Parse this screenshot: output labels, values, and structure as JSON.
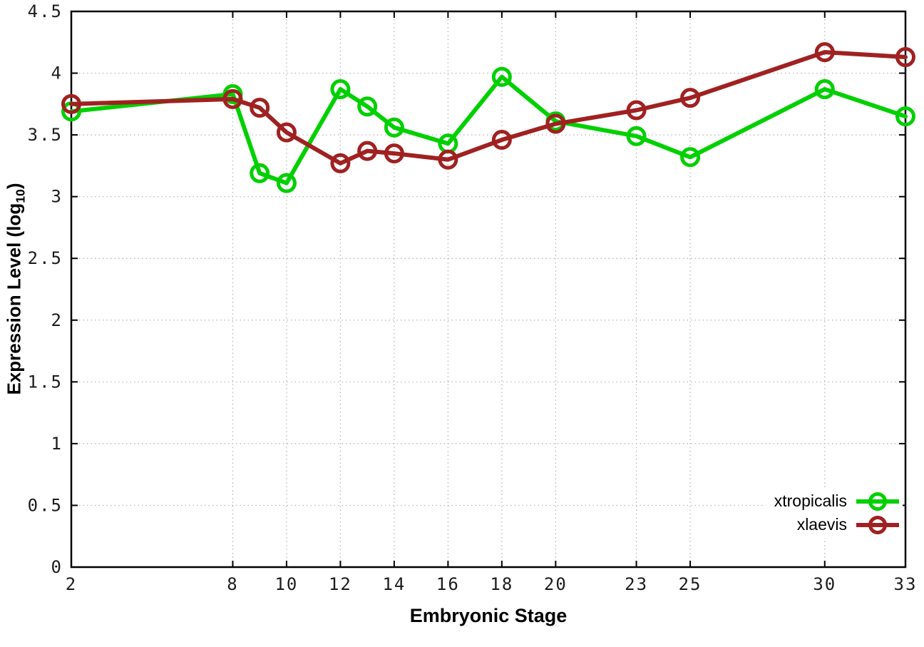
{
  "chart_data": {
    "type": "line",
    "title": "",
    "xlabel": "Embryonic Stage",
    "ylabel": "Expression Level (log10)",
    "ylabel_parts": {
      "pre": "Expression Level (log",
      "sub": "10",
      "post": ")"
    },
    "x": [
      2,
      8,
      9,
      10,
      12,
      13,
      14,
      16,
      18,
      20,
      23,
      25,
      30,
      33
    ],
    "series": [
      {
        "name": "xtropicalis",
        "color": "#00d000",
        "values": [
          3.69,
          3.83,
          3.19,
          3.11,
          3.87,
          3.73,
          3.56,
          3.43,
          3.97,
          3.61,
          3.49,
          3.32,
          3.87,
          3.65
        ]
      },
      {
        "name": "xlaevis",
        "color": "#a02121",
        "values": [
          3.75,
          3.79,
          3.72,
          3.52,
          3.27,
          3.37,
          3.35,
          3.3,
          3.46,
          3.59,
          3.7,
          3.8,
          4.17,
          4.13
        ]
      }
    ],
    "x_ticks": [
      2,
      8,
      10,
      12,
      14,
      16,
      18,
      20,
      23,
      25,
      30,
      33
    ],
    "y_ticks": [
      0,
      0.5,
      1,
      1.5,
      2,
      2.5,
      3,
      3.5,
      4,
      4.5
    ],
    "xlim": [
      2,
      33
    ],
    "ylim": [
      0,
      4.5
    ],
    "grid": true,
    "legend_position": "bottom-right",
    "marker": "open-circle"
  }
}
